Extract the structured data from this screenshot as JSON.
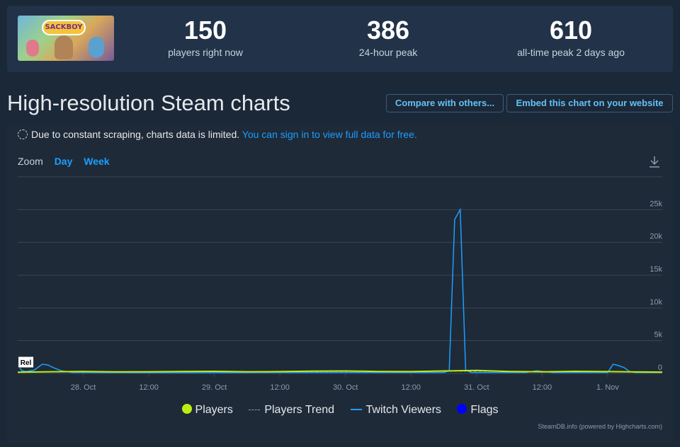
{
  "stats": [
    {
      "value": "150",
      "label": "players right now"
    },
    {
      "value": "386",
      "label": "24-hour peak"
    },
    {
      "value": "610",
      "label": "all-time peak 2 days ago"
    }
  ],
  "header": {
    "title": "High-resolution Steam charts",
    "compare_label": "Compare with others...",
    "embed_label": "Embed this chart on your website"
  },
  "notice": {
    "text": "Due to constant scraping, charts data is limited.",
    "link": "You can sign in to view full data for free."
  },
  "zoom": {
    "label": "Zoom",
    "options": [
      "Day",
      "Week"
    ]
  },
  "thumbnail": {
    "logo_text": "SACKBOY"
  },
  "credit": "SteamDB.info (powered by Highcharts.com)",
  "colors": {
    "players": "#beee11",
    "twitch": "#1a9fff",
    "flags": "#0000ff",
    "trend": "#8a9bb0"
  },
  "chart_data": {
    "type": "line",
    "x_unit": "hours since 27 Oct 00:00",
    "x_ticks": [
      {
        "x": 24,
        "label": "28. Oct"
      },
      {
        "x": 36,
        "label": "12:00"
      },
      {
        "x": 48,
        "label": "29. Oct"
      },
      {
        "x": 60,
        "label": "12:00"
      },
      {
        "x": 72,
        "label": "30. Oct"
      },
      {
        "x": 84,
        "label": "12:00"
      },
      {
        "x": 96,
        "label": "31. Oct"
      },
      {
        "x": 108,
        "label": "12:00"
      },
      {
        "x": 120,
        "label": "1. Nov"
      }
    ],
    "xlim": [
      12,
      130
    ],
    "y_ticks": [
      {
        "y": 0,
        "label": "0"
      },
      {
        "y": 5000,
        "label": "5k"
      },
      {
        "y": 10000,
        "label": "10k"
      },
      {
        "y": 15000,
        "label": "15k"
      },
      {
        "y": 20000,
        "label": "20k"
      },
      {
        "y": 25000,
        "label": "25k"
      }
    ],
    "ylim": [
      0,
      30000
    ],
    "legend_position": "bottom",
    "series": [
      {
        "name": "Players",
        "x": [
          12,
          18,
          24,
          30,
          36,
          42,
          48,
          54,
          60,
          66,
          72,
          78,
          84,
          90,
          96,
          102,
          108,
          114,
          120,
          126,
          130
        ],
        "values": [
          180,
          260,
          300,
          240,
          260,
          300,
          320,
          260,
          280,
          350,
          380,
          300,
          280,
          380,
          450,
          300,
          250,
          320,
          280,
          230,
          200
        ]
      },
      {
        "name": "Players Trend",
        "x": [
          12,
          24,
          36,
          48,
          60,
          72,
          84,
          96,
          108,
          120,
          130
        ],
        "values": [
          200,
          250,
          250,
          270,
          270,
          300,
          320,
          330,
          300,
          270,
          240
        ]
      },
      {
        "name": "Twitch Viewers",
        "x": [
          12,
          12.8,
          13.5,
          15,
          16.5,
          17.5,
          18.5,
          20,
          22,
          40,
          60,
          78,
          86,
          90,
          91,
          92,
          93,
          94,
          95,
          100,
          105,
          107,
          110,
          120,
          121,
          122,
          123,
          124,
          125,
          130
        ],
        "values": [
          1200,
          400,
          300,
          500,
          1400,
          1300,
          900,
          400,
          150,
          120,
          150,
          150,
          150,
          150,
          400,
          23500,
          25000,
          500,
          150,
          150,
          150,
          400,
          150,
          150,
          1400,
          1200,
          900,
          300,
          150,
          150
        ]
      },
      {
        "name": "Flags",
        "values": []
      }
    ],
    "flags": [
      {
        "x": 13.5,
        "label": "Rel"
      }
    ]
  }
}
